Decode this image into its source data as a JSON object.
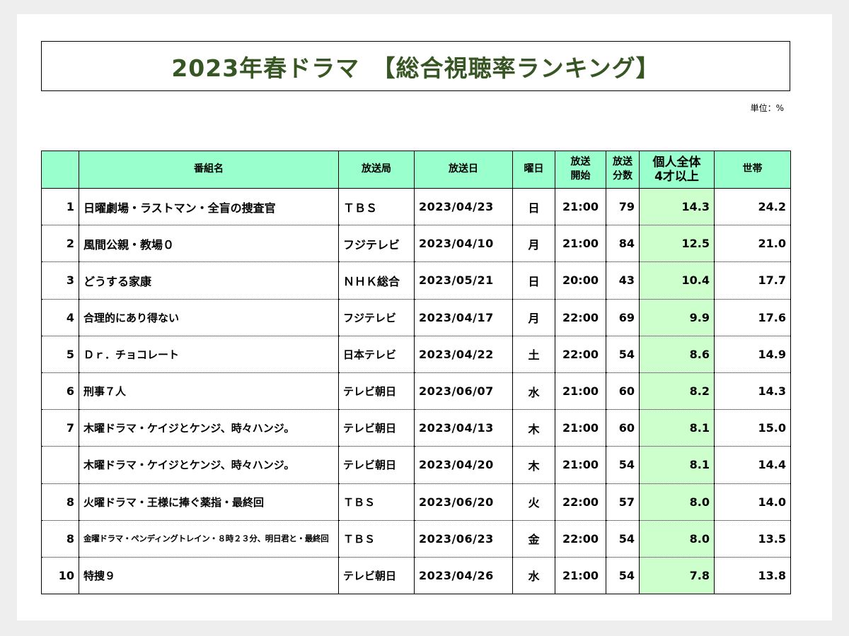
{
  "title": "2023年春ドラマ　【総合視聴率ランキング】",
  "unit": "単位：%",
  "headers": {
    "rank": "",
    "program": "番組名",
    "station": "放送局",
    "date": "放送日",
    "weekday": "曜日",
    "start_line1": "放送",
    "start_line2": "開始",
    "minutes_line1": "放送",
    "minutes_line2": "分数",
    "personal_line1": "個人全体",
    "personal_line2": "4才以上",
    "household": "世帯"
  },
  "rows": [
    {
      "rank": "1",
      "program": "日曜劇場・ラストマン・全盲の捜査官",
      "station": "ＴＢＳ",
      "date": "2023/04/23",
      "weekday": "日",
      "start": "21:00",
      "minutes": "79",
      "personal": "14.3",
      "household": "24.2"
    },
    {
      "rank": "2",
      "program": "風間公親・教場０",
      "station": "フジテレビ",
      "date": "2023/04/10",
      "weekday": "月",
      "start": "21:00",
      "minutes": "84",
      "personal": "12.5",
      "household": "21.0"
    },
    {
      "rank": "3",
      "program": "どうする家康",
      "station": "ＮＨＫ総合",
      "date": "2023/05/21",
      "weekday": "日",
      "start": "20:00",
      "minutes": "43",
      "personal": "10.4",
      "household": "17.7"
    },
    {
      "rank": "4",
      "program": "合理的にあり得ない",
      "station": "フジテレビ",
      "date": "2023/04/17",
      "weekday": "月",
      "start": "22:00",
      "minutes": "69",
      "personal": "9.9",
      "household": "17.6"
    },
    {
      "rank": "5",
      "program": "Ｄｒ．チョコレート",
      "station": "日本テレビ",
      "date": "2023/04/22",
      "weekday": "土",
      "start": "22:00",
      "minutes": "54",
      "personal": "8.6",
      "household": "14.9"
    },
    {
      "rank": "6",
      "program": "刑事７人",
      "station": "テレビ朝日",
      "date": "2023/06/07",
      "weekday": "水",
      "start": "21:00",
      "minutes": "60",
      "personal": "8.2",
      "household": "14.3"
    },
    {
      "rank": "7",
      "program": "木曜ドラマ・ケイジとケンジ、時々ハンジ。",
      "station": "テレビ朝日",
      "date": "2023/04/13",
      "weekday": "木",
      "start": "21:00",
      "minutes": "60",
      "personal": "8.1",
      "household": "15.0"
    },
    {
      "rank": "",
      "program": "木曜ドラマ・ケイジとケンジ、時々ハンジ。",
      "station": "テレビ朝日",
      "date": "2023/04/20",
      "weekday": "木",
      "start": "21:00",
      "minutes": "54",
      "personal": "8.1",
      "household": "14.4"
    },
    {
      "rank": "8",
      "program": "火曜ドラマ・王様に捧ぐ薬指・最終回",
      "station": "ＴＢＳ",
      "date": "2023/06/20",
      "weekday": "火",
      "start": "22:00",
      "minutes": "57",
      "personal": "8.0",
      "household": "14.0"
    },
    {
      "rank": "8",
      "program": "金曜ドラマ・ペンディングトレイン・８時２３分、明日君と・最終回",
      "station": "ＴＢＳ",
      "date": "2023/06/23",
      "weekday": "金",
      "start": "22:00",
      "minutes": "54",
      "personal": "8.0",
      "household": "13.5"
    },
    {
      "rank": "10",
      "program": "特捜９",
      "station": "テレビ朝日",
      "date": "2023/04/26",
      "weekday": "水",
      "start": "21:00",
      "minutes": "54",
      "personal": "7.8",
      "household": "13.8"
    }
  ]
}
